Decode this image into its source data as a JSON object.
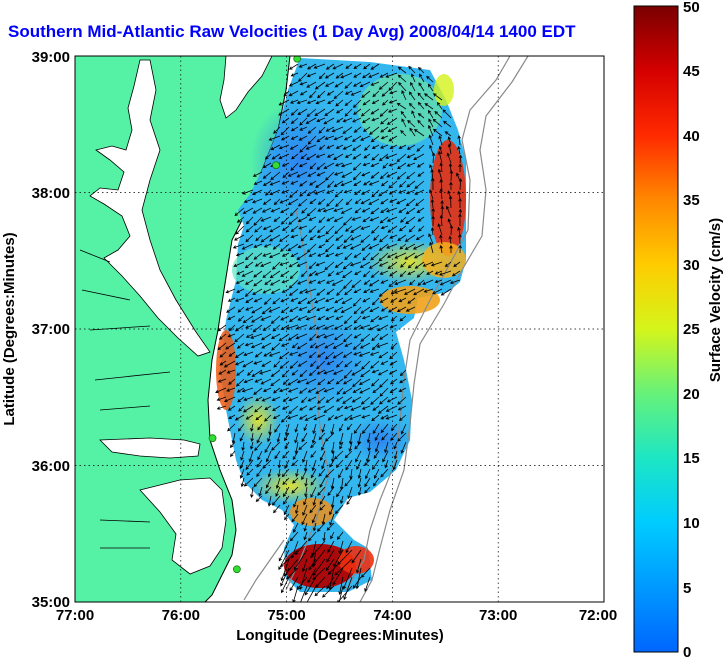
{
  "title": "Southern Mid-Atlantic Raw Velocities (1 Day Avg) 2008/04/14 1400 EDT",
  "colors": {
    "land": "#55f2a6",
    "title": "#0000ff",
    "coast": "#7a7a7a",
    "station": "#33dd33"
  },
  "chart_data": {
    "type": "heatmap",
    "x_axis": {
      "label": "Longitude (Degrees:Minutes)",
      "range": [
        -77,
        -72
      ],
      "ticks": [
        -77,
        -76,
        -75,
        -74,
        -73,
        -72
      ],
      "tick_labels": [
        "77:00",
        "76:00",
        "75:00",
        "74:00",
        "73:00",
        "72:00"
      ]
    },
    "y_axis": {
      "label": "Latitude (Degrees:Minutes)",
      "range": [
        35,
        39
      ],
      "ticks": [
        35,
        36,
        37,
        38,
        39
      ],
      "tick_labels": [
        "35:00",
        "36:00",
        "37:00",
        "38:00",
        "39:00"
      ]
    },
    "grid": true,
    "colorbar": {
      "label": "Surface Velocity (cm/s)",
      "range": [
        0,
        50
      ],
      "ticks": [
        0,
        5,
        10,
        15,
        20,
        25,
        30,
        35,
        40,
        45,
        50
      ],
      "tick_labels": [
        "0",
        "5",
        "10",
        "15",
        "20",
        "25",
        "30",
        "35",
        "40",
        "45",
        "50"
      ]
    },
    "stations": [
      {
        "lon": -74.9,
        "lat": 38.98
      },
      {
        "lon": -75.1,
        "lat": 38.2
      },
      {
        "lon": -75.7,
        "lat": 36.2
      },
      {
        "lon": -75.47,
        "lat": 35.24
      }
    ]
  }
}
